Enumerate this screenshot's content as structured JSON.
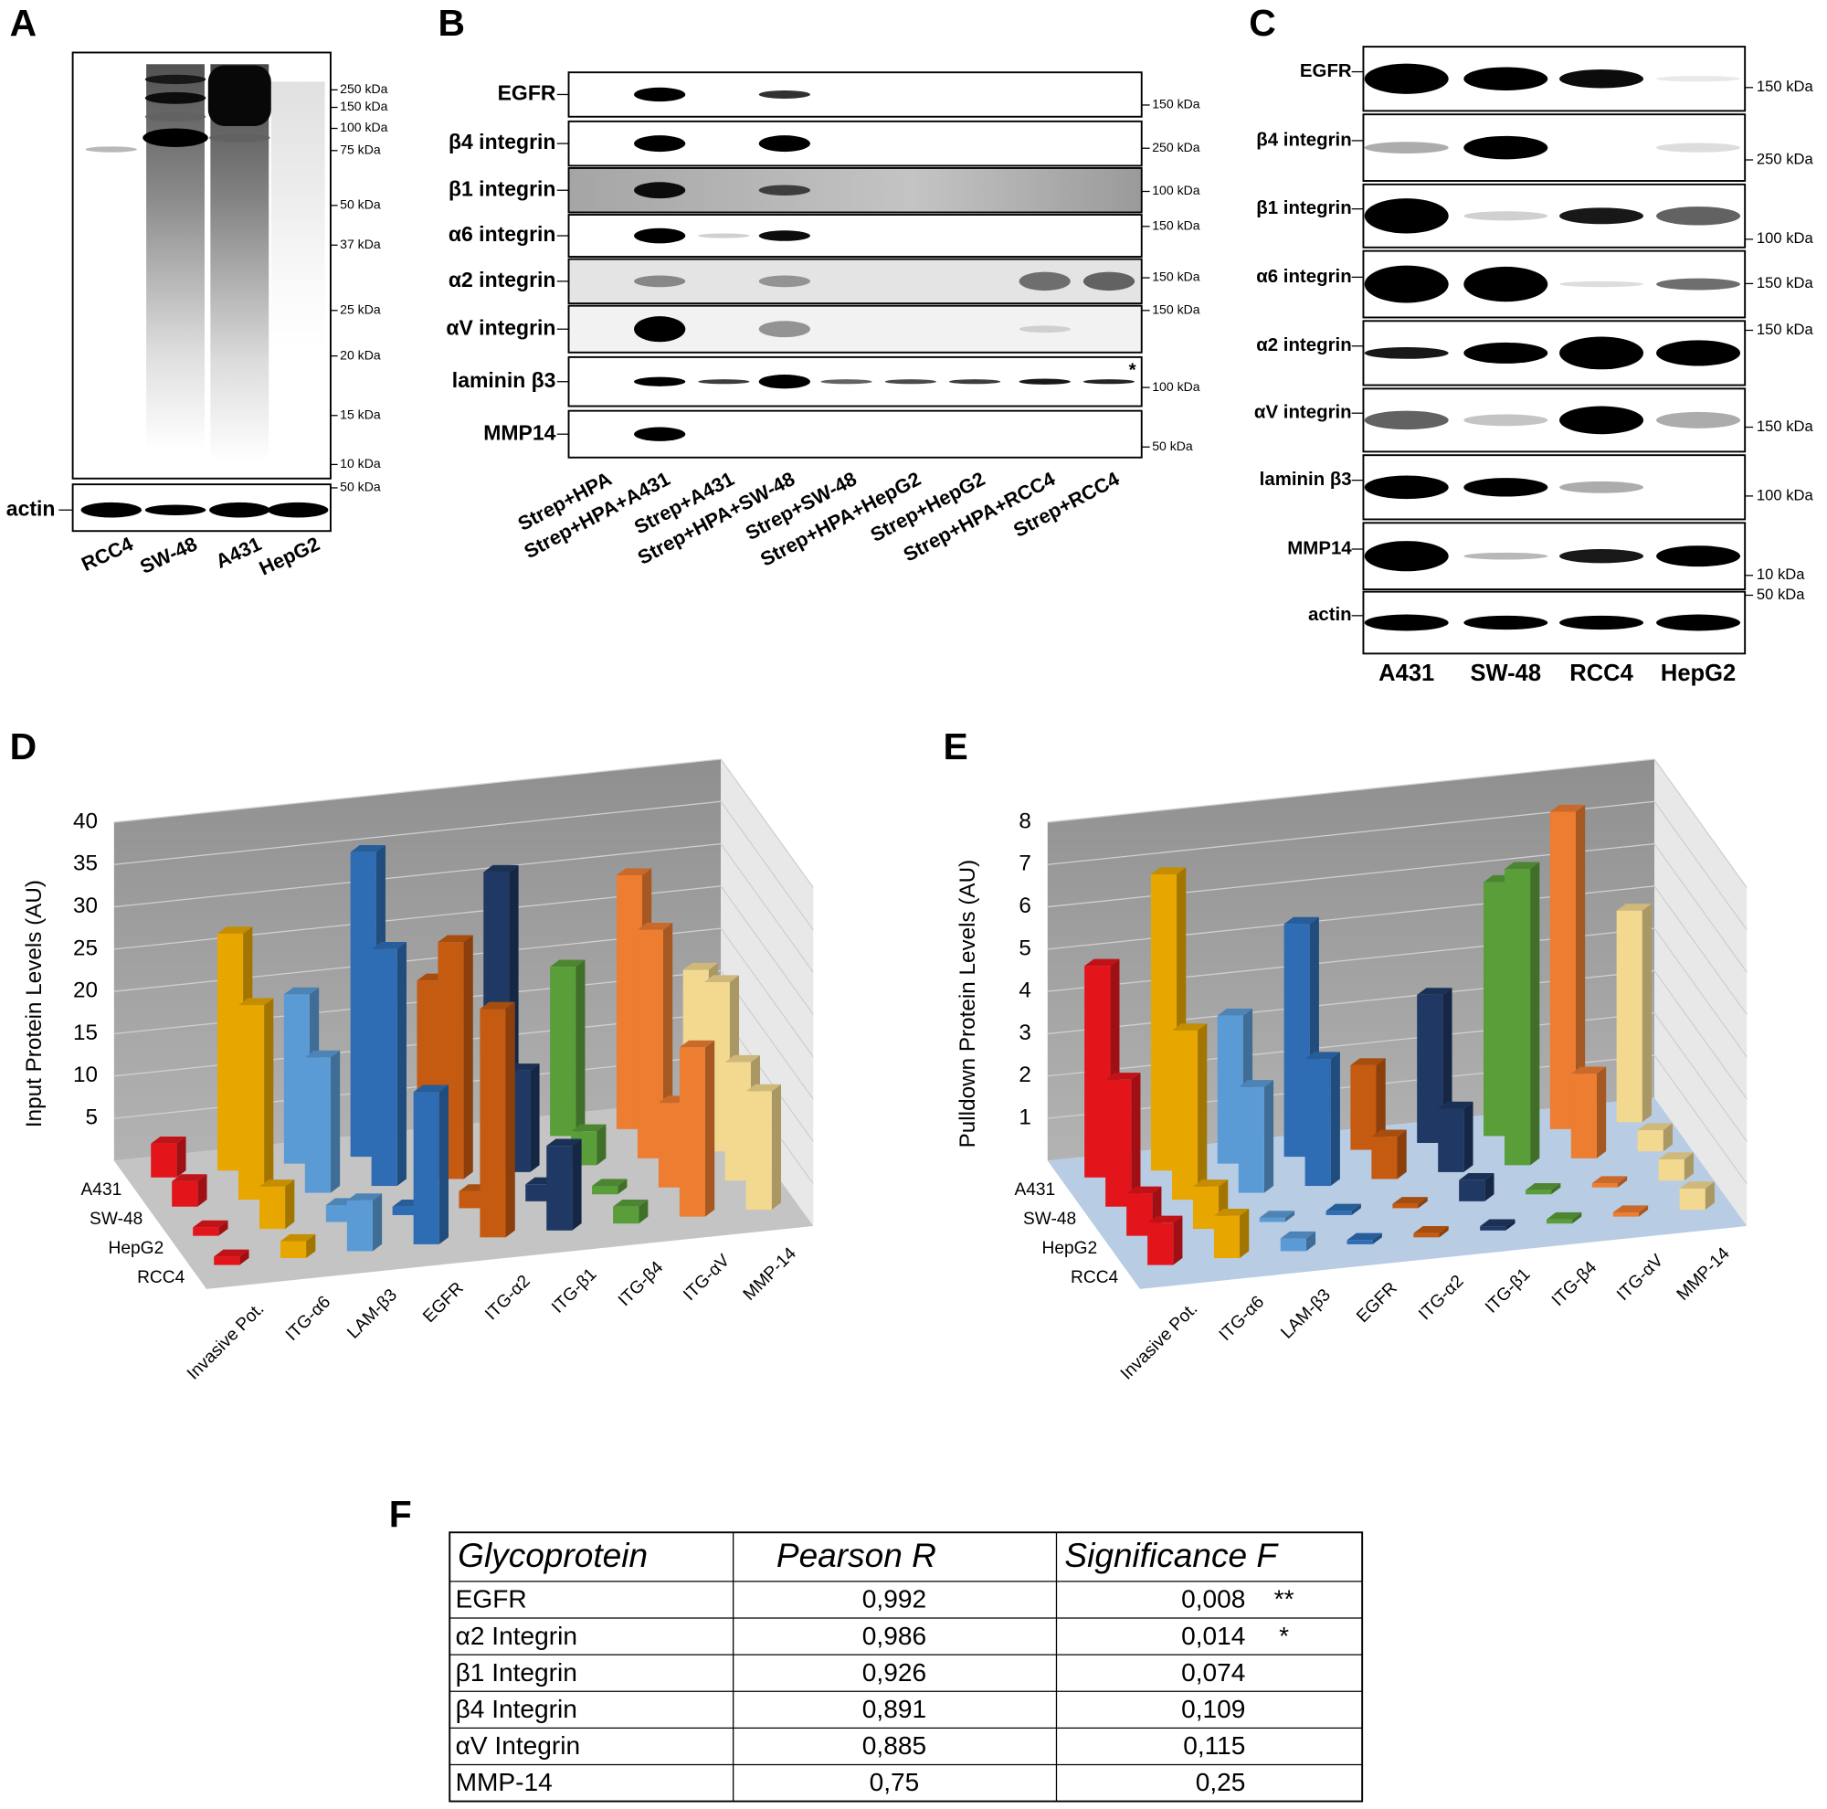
{
  "panels": {
    "A": {
      "letter": "A",
      "markers": [
        "250 kDa",
        "150 kDa",
        "100 kDa",
        "75 kDa",
        "50 kDa",
        "37 kDa",
        "25 kDa",
        "20 kDa",
        "15 kDa",
        "10 kDa"
      ],
      "loading": "actin",
      "loading_marker": "50 kDa",
      "lanes": [
        "RCC4",
        "SW-48",
        "A431",
        "HepG2"
      ]
    },
    "B": {
      "letter": "B",
      "rows": [
        {
          "name": "EGFR",
          "marker": "150 kDa"
        },
        {
          "name": "β4 integrin",
          "marker": "250 kDa"
        },
        {
          "name": "β1 integrin",
          "marker": "100 kDa"
        },
        {
          "name": "α6 integrin",
          "marker": "150 kDa"
        },
        {
          "name": "α2 integrin",
          "marker": "150 kDa"
        },
        {
          "name": "αV integrin",
          "marker": "150 kDa"
        },
        {
          "name": "laminin β3",
          "marker": "100 kDa"
        },
        {
          "name": "MMP14",
          "marker": "50 kDa"
        }
      ],
      "asterisk": "*",
      "lanes": [
        "Strep+HPA",
        "Strep+HPA+A431",
        "Strep+A431",
        "Strep+HPA+SW-48",
        "Strep+SW-48",
        "Strep+HPA+HepG2",
        "Strep+HepG2",
        "Strep+HPA+RCC4",
        "Strep+RCC4"
      ]
    },
    "C": {
      "letter": "C",
      "rows": [
        {
          "name": "EGFR",
          "marker": "150 kDa"
        },
        {
          "name": "β4 integrin",
          "marker": "250 kDa"
        },
        {
          "name": "β1 integrin",
          "marker": "100 kDa"
        },
        {
          "name": "α6 integrin",
          "marker": "150 kDa"
        },
        {
          "name": "α2 integrin",
          "marker": "150 kDa"
        },
        {
          "name": "αV integrin",
          "marker": "150 kDa"
        },
        {
          "name": "laminin β3",
          "marker": "100 kDa"
        },
        {
          "name": "MMP14",
          "marker": "10 kDa"
        },
        {
          "name": "actin",
          "marker": "50 kDa"
        }
      ],
      "lanes": [
        "A431",
        "SW-48",
        "RCC4",
        "HepG2"
      ]
    }
  },
  "chart_data": [
    {
      "type": "bar3d",
      "panel": "D",
      "y_label": "Input Protein Levels (AU)",
      "categories": [
        "Invasive Pot.",
        "ITG-α6",
        "LAM-β3",
        "EGFR",
        "ITG-α2",
        "ITG-β1",
        "ITG-β4",
        "ITG-αV",
        "MMP-14"
      ],
      "category_colors": [
        "#e3151b",
        "#e8a600",
        "#5b9bd5",
        "#2e6db4",
        "#c55a11",
        "#1f3864",
        "#5a9e3a",
        "#ed7d31",
        "#f3d98f"
      ],
      "floor_color": "#c4c4c4",
      "series": [
        {
          "name": "A431",
          "values": [
            4,
            28,
            20,
            36,
            20,
            32,
            20,
            30,
            18
          ]
        },
        {
          "name": "SW-48",
          "values": [
            3,
            23,
            16,
            28,
            28,
            12,
            4,
            27,
            20
          ]
        },
        {
          "name": "HepG2",
          "values": [
            1,
            5,
            2,
            1,
            2,
            2,
            1,
            10,
            14
          ]
        },
        {
          "name": "RCC4",
          "values": [
            1,
            2,
            6,
            18,
            27,
            10,
            2,
            20,
            14
          ]
        }
      ],
      "ylim": [
        0,
        40
      ],
      "yticks": [
        5,
        10,
        15,
        20,
        25,
        30,
        35,
        40
      ]
    },
    {
      "type": "bar3d",
      "panel": "E",
      "y_label": "Pulldown Protein Levels (AU)",
      "categories": [
        "Invasive Pot.",
        "ITG-α6",
        "LAM-β3",
        "EGFR",
        "ITG-α2",
        "ITG-β1",
        "ITG-β4",
        "ITG-αV",
        "MMP-14"
      ],
      "category_colors": [
        "#e3151b",
        "#e8a600",
        "#5b9bd5",
        "#2e6db4",
        "#c55a11",
        "#1f3864",
        "#5a9e3a",
        "#ed7d31",
        "#f3d98f"
      ],
      "floor_color": "#b8cce4",
      "series": [
        {
          "name": "A431",
          "values": [
            5,
            7,
            3.5,
            5.5,
            2,
            3.5,
            6,
            7.5,
            5
          ]
        },
        {
          "name": "SW-48",
          "values": [
            3,
            4,
            2.5,
            3,
            1,
            1.5,
            7,
            2,
            0.5
          ]
        },
        {
          "name": "HepG2",
          "values": [
            1,
            1,
            0.1,
            0.1,
            0.1,
            0.5,
            0.1,
            0.1,
            0.5
          ]
        },
        {
          "name": "RCC4",
          "values": [
            1,
            1,
            0.3,
            0.1,
            0.1,
            0.1,
            0.1,
            0.1,
            0.5
          ]
        }
      ],
      "ylim": [
        0,
        8
      ],
      "yticks": [
        1,
        2,
        3,
        4,
        5,
        6,
        7,
        8
      ]
    }
  ],
  "table": {
    "letter": "F",
    "header": [
      "Glycoprotein",
      "Pearson R",
      "Significance F"
    ],
    "rows": [
      [
        "EGFR",
        "0,992",
        "0,008",
        "**"
      ],
      [
        "α2 Integrin",
        "0,986",
        "0,014",
        "*"
      ],
      [
        "β1 Integrin",
        "0,926",
        "0,074"
      ],
      [
        "β4 Integrin",
        "0,891",
        "0,109"
      ],
      [
        "αV Integrin",
        "0,885",
        "0,115"
      ],
      [
        "MMP-14",
        "0,75",
        "0,25"
      ]
    ]
  }
}
